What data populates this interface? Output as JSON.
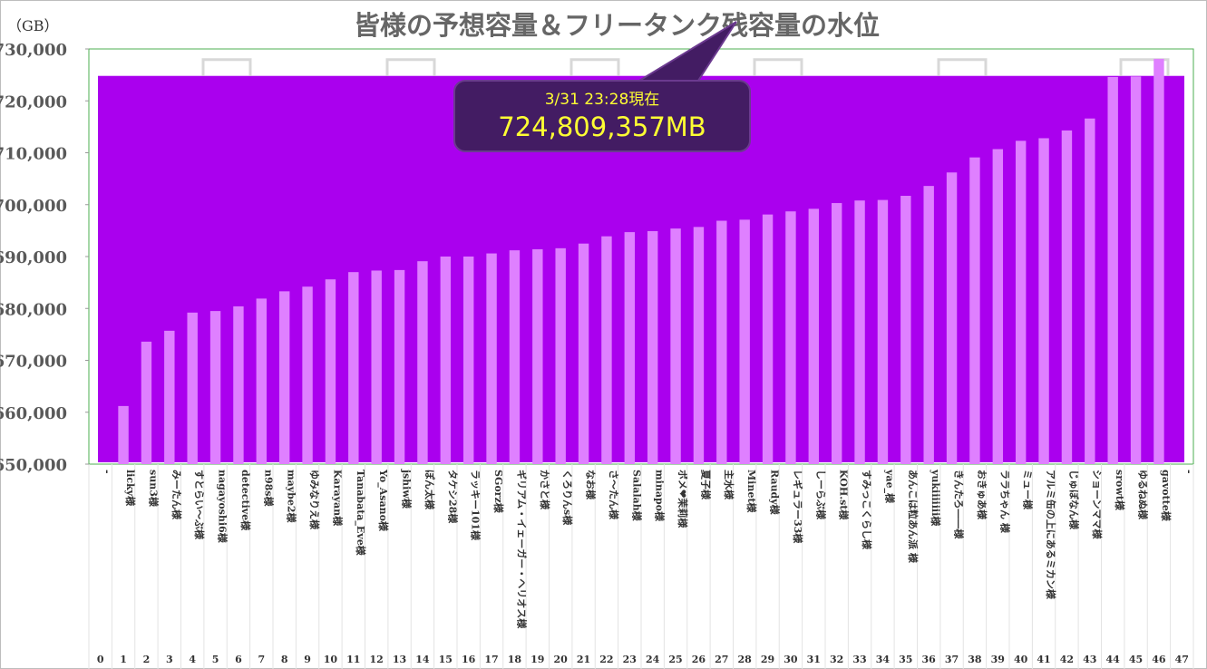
{
  "chart_data": {
    "type": "bar",
    "title": "皆様の予想容量＆フリータンク残容量の水位",
    "unit_label": "（GB）",
    "ylim": [
      650000,
      730000
    ],
    "yticks": [
      "650,000",
      "660,000",
      "670,000",
      "680,000",
      "690,000",
      "700,000",
      "710,000",
      "720,000",
      "730,000"
    ],
    "tank_level_gb": 724809,
    "callout": {
      "line1": "3/31 23:28現在",
      "line2": "724,809,357MB"
    },
    "colors": {
      "tank": "#aa00ee",
      "bar": "#df80ff",
      "callout_bg": "#431c63",
      "callout_text": "#ffff33",
      "frame": "#4caf50"
    },
    "categories": [
      "-",
      "licky様",
      "sun3様",
      "みーたん様",
      "すとらい～ぶ様",
      "nagayoshi6様",
      "detective様",
      "n98s様",
      "maybe2様",
      "ゆみなりえ様",
      "Karayan様",
      "Tanabata_Eve様",
      "Yo_Asano様",
      "jshiw様",
      "ぽん太様",
      "タケシ28様",
      "ラッキー101様",
      "SGorz様",
      "ギリアム・イェーガー・ヘリオス様",
      "かさと様",
      "くろりんs様",
      "なお様",
      "さ～たん様",
      "Salalah様",
      "minapo様",
      "ボメ❤茉莉様",
      "夏子様",
      "主水様",
      "Minet様",
      "Raudy様",
      "レギュラー33様",
      "しーらぶ様",
      "KOH.st様",
      "すみっこくらし様",
      "yae_様",
      "あんこは粒あん派 様",
      "yukiiiiiii様",
      "きんたろ――様",
      "おきゅあ様",
      "ララちゃん 様",
      "ミュー様",
      "アルミ缶の上にあるミカン様",
      "じゅぼなん様",
      "ショーンママ様",
      "srowt様",
      "ゆるねぬ様",
      "gavotte様",
      "-"
    ],
    "index_labels": [
      "0",
      "1",
      "2",
      "3",
      "4",
      "5",
      "6",
      "7",
      "8",
      "9",
      "10",
      "11",
      "12",
      "13",
      "14",
      "15",
      "16",
      "17",
      "18",
      "19",
      "20",
      "21",
      "22",
      "23",
      "24",
      "25",
      "26",
      "27",
      "28",
      "29",
      "30",
      "31",
      "32",
      "33",
      "34",
      "35",
      "36",
      "37",
      "38",
      "39",
      "40",
      "41",
      "42",
      "43",
      "44",
      "45",
      "46",
      "47"
    ],
    "values": [
      650000,
      661200,
      673600,
      675700,
      679200,
      679500,
      680400,
      681900,
      683300,
      684200,
      685600,
      687000,
      687300,
      687400,
      689100,
      690000,
      690000,
      690600,
      691200,
      691400,
      691600,
      692500,
      693900,
      694700,
      694900,
      695400,
      695700,
      696900,
      697100,
      698100,
      698700,
      699200,
      700300,
      700800,
      700900,
      701700,
      703600,
      706200,
      709100,
      710700,
      712300,
      712800,
      714300,
      716600,
      724600,
      724700,
      728100,
      650000
    ]
  }
}
